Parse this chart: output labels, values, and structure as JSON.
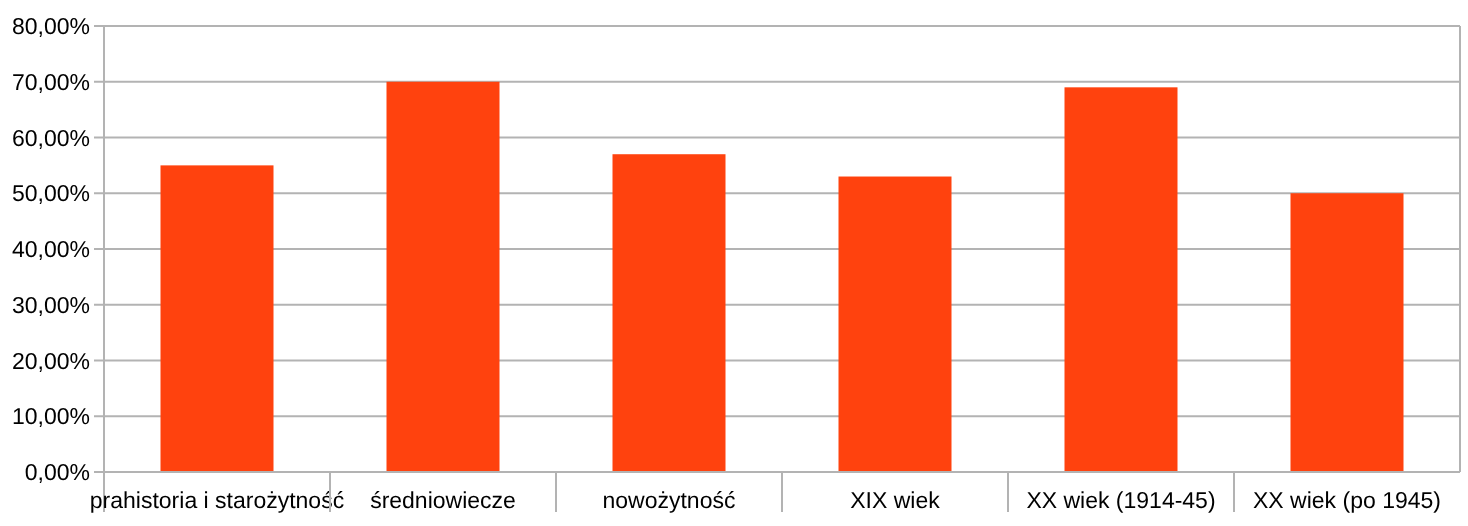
{
  "chart_data": {
    "type": "bar",
    "categories": [
      "prahistoria i starożytność",
      "średniowiecze",
      "nowożytność",
      "XIX wiek",
      "XX wiek (1914-45)",
      "XX wiek (po 1945)"
    ],
    "values": [
      55,
      70,
      57,
      53,
      69,
      50
    ],
    "color": "#ff420e",
    "ylim": [
      0,
      80
    ],
    "yticks": [
      {
        "value": 0,
        "label": "0,00%"
      },
      {
        "value": 10,
        "label": "10,00%"
      },
      {
        "value": 20,
        "label": "20,00%"
      },
      {
        "value": 30,
        "label": "30,00%"
      },
      {
        "value": 40,
        "label": "40,00%"
      },
      {
        "value": 50,
        "label": "50,00%"
      },
      {
        "value": 60,
        "label": "60,00%"
      },
      {
        "value": 70,
        "label": "70,00%"
      },
      {
        "value": 80,
        "label": "80,00%"
      }
    ],
    "grid": "y"
  }
}
